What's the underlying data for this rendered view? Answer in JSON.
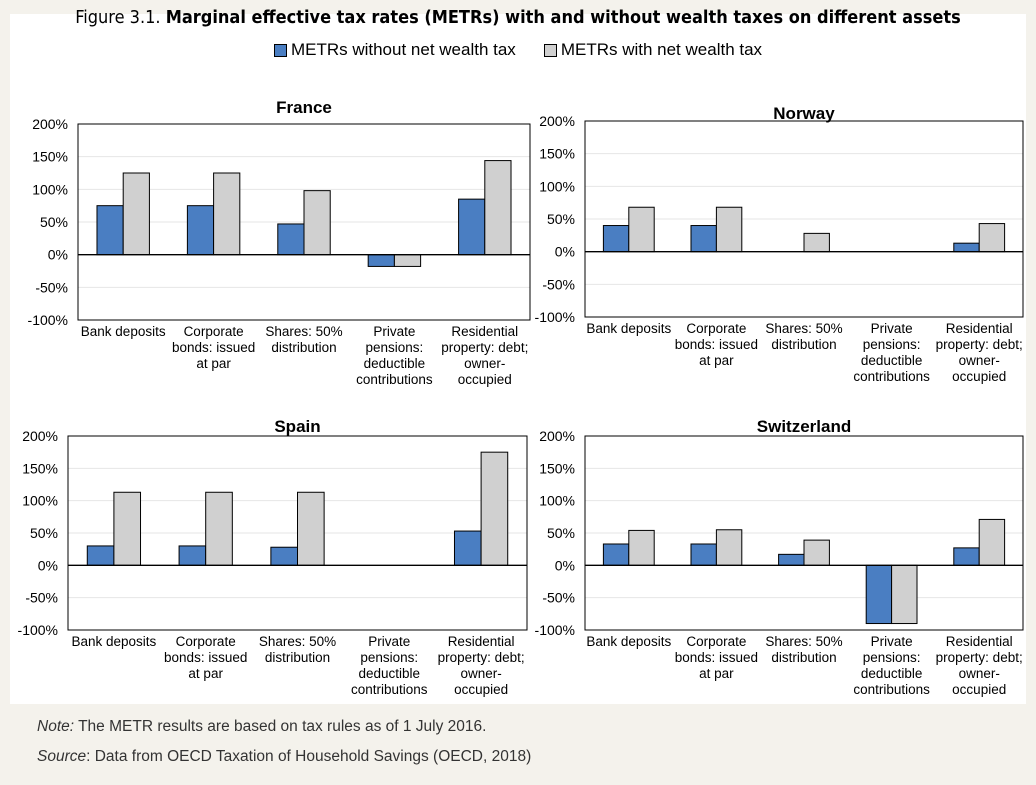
{
  "figure": {
    "number": "Figure 3.1.",
    "title": "Marginal effective tax rates (METRs) with and without wealth taxes on different assets"
  },
  "legend": [
    {
      "label": "METRs without net wealth tax",
      "color": "#4a7ec2"
    },
    {
      "label": "METRs with net wealth tax",
      "color": "#d0d0d0"
    }
  ],
  "chart_data": [
    {
      "type": "bar",
      "title": "France",
      "categories": [
        [
          "Bank deposits"
        ],
        [
          "Corporate",
          "bonds: issued",
          "at par"
        ],
        [
          "Shares: 50%",
          "distribution"
        ],
        [
          "Private",
          "pensions:",
          "deductible",
          "contributions"
        ],
        [
          "Residential",
          "property: debt;",
          "owner-",
          "occupied"
        ]
      ],
      "series": [
        {
          "name": "METRs without net wealth tax",
          "values": [
            75,
            75,
            47,
            -18,
            85
          ]
        },
        {
          "name": "METRs with net wealth tax",
          "values": [
            125,
            125,
            98,
            -18,
            144
          ]
        }
      ],
      "ylim": [
        -100,
        200
      ],
      "yticks": [
        "200%",
        "150%",
        "100%",
        "50%",
        "0%",
        "-50%",
        "-100%"
      ],
      "colors": [
        "#4a7ec2",
        "#d0d0d0"
      ],
      "grid": true
    },
    {
      "type": "bar",
      "title": "Norway",
      "categories": [
        [
          "Bank deposits"
        ],
        [
          "Corporate",
          "bonds: issued",
          "at par"
        ],
        [
          "Shares: 50%",
          "distribution"
        ],
        [
          "Private",
          "pensions:",
          "deductible",
          "contributions"
        ],
        [
          "Residential",
          "property: debt;",
          "owner-",
          "occupied"
        ]
      ],
      "series": [
        {
          "name": "METRs without net wealth tax",
          "values": [
            40,
            40,
            0,
            0,
            13
          ]
        },
        {
          "name": "METRs with net wealth tax",
          "values": [
            68,
            68,
            28,
            0,
            43
          ]
        }
      ],
      "ylim": [
        -100,
        200
      ],
      "yticks": [
        "200%",
        "150%",
        "100%",
        "50%",
        "0%",
        "-50%",
        "-100%"
      ],
      "colors": [
        "#4a7ec2",
        "#d0d0d0"
      ],
      "grid": true
    },
    {
      "type": "bar",
      "title": "Spain",
      "categories": [
        [
          "Bank deposits"
        ],
        [
          "Corporate",
          "bonds: issued",
          "at par"
        ],
        [
          "Shares: 50%",
          "distribution"
        ],
        [
          "Private",
          "pensions:",
          "deductible",
          "contributions"
        ],
        [
          "Residential",
          "property: debt;",
          "owner-",
          "occupied"
        ]
      ],
      "series": [
        {
          "name": "METRs without net wealth tax",
          "values": [
            30,
            30,
            28,
            0,
            53
          ]
        },
        {
          "name": "METRs with net wealth tax",
          "values": [
            113,
            113,
            113,
            0,
            175
          ]
        }
      ],
      "ylim": [
        -100,
        200
      ],
      "yticks": [
        "200%",
        "150%",
        "100%",
        "50%",
        "0%",
        "-50%",
        "-100%"
      ],
      "colors": [
        "#4a7ec2",
        "#d0d0d0"
      ],
      "grid": true
    },
    {
      "type": "bar",
      "title": "Switzerland",
      "categories": [
        [
          "Bank deposits"
        ],
        [
          "Corporate",
          "bonds: issued",
          "at par"
        ],
        [
          "Shares: 50%",
          "distribution"
        ],
        [
          "Private",
          "pensions:",
          "deductible",
          "contributions"
        ],
        [
          "Residential",
          "property: debt;",
          "owner-",
          "occupied"
        ]
      ],
      "series": [
        {
          "name": "METRs without net wealth tax",
          "values": [
            33,
            33,
            17,
            -90,
            27
          ]
        },
        {
          "name": "METRs with net wealth tax",
          "values": [
            54,
            55,
            39,
            -90,
            71
          ]
        }
      ],
      "ylim": [
        -100,
        200
      ],
      "yticks": [
        "200%",
        "150%",
        "100%",
        "50%",
        "0%",
        "-50%",
        "-100%"
      ],
      "colors": [
        "#4a7ec2",
        "#d0d0d0"
      ],
      "grid": true
    }
  ],
  "notes": {
    "note_label": "Note:",
    "note_text": " The METR results are based on tax rules as of 1 July 2016.",
    "source_label": "Source",
    "source_text": ": Data from OECD Taxation of Household Savings (OECD, 2018)"
  }
}
